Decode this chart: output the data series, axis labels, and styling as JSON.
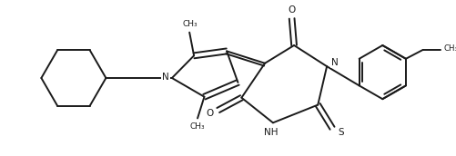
{
  "background": "#ffffff",
  "line_color": "#1a1a1a",
  "line_width": 1.4,
  "fig_width": 5.02,
  "fig_height": 1.72,
  "dpi": 100,
  "xlim": [
    0,
    10.04
  ],
  "ylim": [
    0,
    3.44
  ]
}
